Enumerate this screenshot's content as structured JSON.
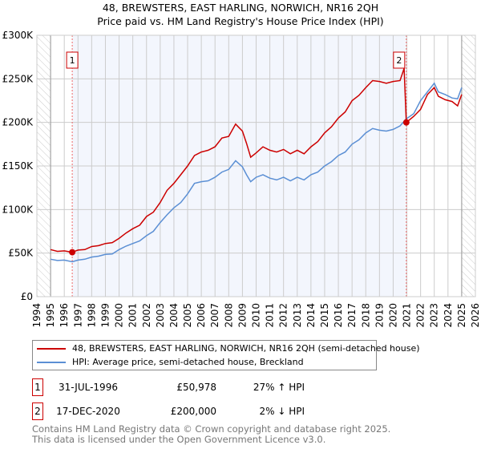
{
  "chart_data": {
    "type": "line",
    "title": "48, BREWSTERS, EAST HARLING, NORWICH, NR16 2QH",
    "subtitle": "Price paid vs. HM Land Registry's House Price Index (HPI)",
    "xlim": [
      1994,
      2026
    ],
    "ylim": [
      0,
      300000
    ],
    "x_ticks": [
      "1994",
      "1995",
      "1996",
      "1997",
      "1998",
      "1999",
      "2000",
      "2001",
      "2002",
      "2003",
      "2004",
      "2005",
      "2006",
      "2007",
      "2008",
      "2009",
      "2010",
      "2011",
      "2012",
      "2013",
      "2014",
      "2015",
      "2016",
      "2017",
      "2018",
      "2019",
      "2020",
      "2021",
      "2022",
      "2023",
      "2024",
      "2025",
      "2026"
    ],
    "y_ticks": [
      {
        "v": 0,
        "label": "£0"
      },
      {
        "v": 50000,
        "label": "£50K"
      },
      {
        "v": 100000,
        "label": "£100K"
      },
      {
        "v": 150000,
        "label": "£150K"
      },
      {
        "v": 200000,
        "label": "£200K"
      },
      {
        "v": 250000,
        "label": "£250K"
      },
      {
        "v": 300000,
        "label": "£300K"
      }
    ],
    "grid": true,
    "series": [
      {
        "name": "48, BREWSTERS, EAST HARLING, NORWICH, NR16 2QH (semi-detached house)",
        "color": "#cc0000",
        "points": [
          [
            1995,
            54000
          ],
          [
            1995.5,
            52000
          ],
          [
            1996,
            52500
          ],
          [
            1996.58,
            50978
          ],
          [
            1997,
            53500
          ],
          [
            1997.5,
            54000
          ],
          [
            1998,
            57500
          ],
          [
            1998.5,
            58500
          ],
          [
            1999,
            61000
          ],
          [
            1999.5,
            62000
          ],
          [
            2000,
            67000
          ],
          [
            2000.5,
            73000
          ],
          [
            2001,
            78000
          ],
          [
            2001.5,
            82000
          ],
          [
            2002,
            92000
          ],
          [
            2002.5,
            97000
          ],
          [
            2003,
            108000
          ],
          [
            2003.5,
            122000
          ],
          [
            2004,
            130000
          ],
          [
            2004.5,
            140000
          ],
          [
            2005,
            150000
          ],
          [
            2005.5,
            162000
          ],
          [
            2006,
            166000
          ],
          [
            2006.5,
            168000
          ],
          [
            2007,
            172000
          ],
          [
            2007.5,
            182000
          ],
          [
            2008,
            184000
          ],
          [
            2008.5,
            198000
          ],
          [
            2009,
            190000
          ],
          [
            2009.3,
            176000
          ],
          [
            2009.6,
            160000
          ],
          [
            2010,
            165000
          ],
          [
            2010.5,
            172000
          ],
          [
            2011,
            168000
          ],
          [
            2011.5,
            166000
          ],
          [
            2012,
            169000
          ],
          [
            2012.5,
            164000
          ],
          [
            2013,
            168000
          ],
          [
            2013.5,
            164000
          ],
          [
            2014,
            172000
          ],
          [
            2014.5,
            178000
          ],
          [
            2015,
            188000
          ],
          [
            2015.5,
            195000
          ],
          [
            2016,
            205000
          ],
          [
            2016.5,
            212000
          ],
          [
            2017,
            225000
          ],
          [
            2017.5,
            231000
          ],
          [
            2018,
            240000
          ],
          [
            2018.5,
            248000
          ],
          [
            2019,
            247000
          ],
          [
            2019.5,
            245000
          ],
          [
            2020,
            247000
          ],
          [
            2020.5,
            248000
          ],
          [
            2020.8,
            262000
          ],
          [
            2020.96,
            200000
          ],
          [
            2021.5,
            207000
          ],
          [
            2022,
            215000
          ],
          [
            2022.5,
            232000
          ],
          [
            2023,
            240000
          ],
          [
            2023.3,
            230000
          ],
          [
            2023.8,
            226000
          ],
          [
            2024.3,
            224000
          ],
          [
            2024.7,
            219000
          ],
          [
            2025,
            232000
          ]
        ]
      },
      {
        "name": "HPI: Average price, semi-detached house, Breckland",
        "color": "#5b8fd4",
        "points": [
          [
            1995,
            43000
          ],
          [
            1995.5,
            41500
          ],
          [
            1996,
            42000
          ],
          [
            1996.58,
            40000
          ],
          [
            1997,
            42000
          ],
          [
            1997.5,
            43000
          ],
          [
            1998,
            45500
          ],
          [
            1998.5,
            46500
          ],
          [
            1999,
            48500
          ],
          [
            1999.5,
            49000
          ],
          [
            2000,
            54000
          ],
          [
            2000.5,
            58000
          ],
          [
            2001,
            61000
          ],
          [
            2001.5,
            64000
          ],
          [
            2002,
            70000
          ],
          [
            2002.5,
            75000
          ],
          [
            2003,
            85000
          ],
          [
            2003.5,
            94000
          ],
          [
            2004,
            102000
          ],
          [
            2004.5,
            108000
          ],
          [
            2005,
            118000
          ],
          [
            2005.5,
            130000
          ],
          [
            2006,
            132000
          ],
          [
            2006.5,
            133000
          ],
          [
            2007,
            137000
          ],
          [
            2007.5,
            143000
          ],
          [
            2008,
            146000
          ],
          [
            2008.5,
            156000
          ],
          [
            2009,
            149000
          ],
          [
            2009.3,
            140000
          ],
          [
            2009.6,
            132000
          ],
          [
            2010,
            137000
          ],
          [
            2010.5,
            140000
          ],
          [
            2011,
            136000
          ],
          [
            2011.5,
            134000
          ],
          [
            2012,
            137000
          ],
          [
            2012.5,
            133000
          ],
          [
            2013,
            137000
          ],
          [
            2013.5,
            134000
          ],
          [
            2014,
            140000
          ],
          [
            2014.5,
            143000
          ],
          [
            2015,
            150000
          ],
          [
            2015.5,
            155000
          ],
          [
            2016,
            162000
          ],
          [
            2016.5,
            166000
          ],
          [
            2017,
            175000
          ],
          [
            2017.5,
            180000
          ],
          [
            2018,
            188000
          ],
          [
            2018.5,
            193000
          ],
          [
            2019,
            191000
          ],
          [
            2019.5,
            190000
          ],
          [
            2020,
            192000
          ],
          [
            2020.5,
            196000
          ],
          [
            2020.96,
            204000
          ],
          [
            2021.5,
            210000
          ],
          [
            2022,
            225000
          ],
          [
            2022.5,
            235000
          ],
          [
            2023,
            245000
          ],
          [
            2023.3,
            235000
          ],
          [
            2023.8,
            232000
          ],
          [
            2024.3,
            228000
          ],
          [
            2024.7,
            227000
          ],
          [
            2025,
            240000
          ]
        ]
      }
    ],
    "shaded_range": [
      1996.58,
      2020.96
    ],
    "hatched_before": 1995,
    "hatched_after": 2025,
    "annotations": [
      {
        "label": "1",
        "x": 1996.58,
        "y": 50978
      },
      {
        "label": "2",
        "x": 2020.96,
        "y": 200000
      }
    ]
  },
  "legend": {
    "items": [
      {
        "label": "48, BREWSTERS, EAST HARLING, NORWICH, NR16 2QH (semi-detached house)",
        "color": "#cc0000"
      },
      {
        "label": "HPI: Average price, semi-detached house, Breckland",
        "color": "#5b8fd4"
      }
    ]
  },
  "transactions": [
    {
      "marker": "1",
      "date": "31-JUL-1996",
      "price": "£50,978",
      "hpi": "27% ↑ HPI"
    },
    {
      "marker": "2",
      "date": "17-DEC-2020",
      "price": "£200,000",
      "hpi": "2% ↓ HPI"
    }
  ],
  "footer": {
    "line1": "Contains HM Land Registry data © Crown copyright and database right 2025.",
    "line2": "This data is licensed under the Open Government Licence v3.0."
  }
}
